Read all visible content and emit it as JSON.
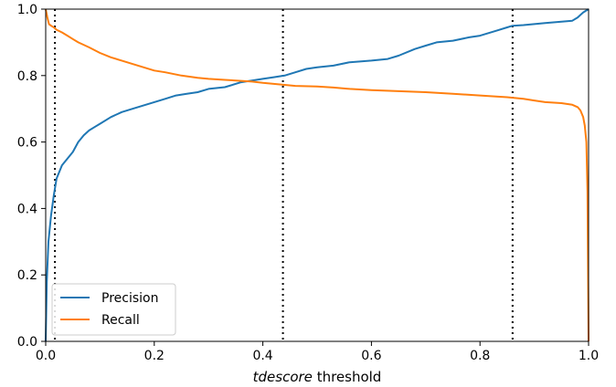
{
  "chart_data": {
    "type": "line",
    "xlabel_italic": "tdescore",
    "xlabel_rest": " threshold",
    "ylabel": "",
    "xlim": [
      0.0,
      1.0
    ],
    "ylim": [
      0.0,
      1.0
    ],
    "xticks": [
      "0.0",
      "0.2",
      "0.4",
      "0.6",
      "0.8",
      "1.0"
    ],
    "yticks": [
      "0.0",
      "0.2",
      "0.4",
      "0.6",
      "0.8",
      "1.0"
    ],
    "grid": false,
    "legend_position": "lower-left",
    "vlines": [
      0.017,
      0.437,
      0.86
    ],
    "series": [
      {
        "name": "Precision",
        "color": "#1f77b4",
        "x": [
          0.0,
          0.002,
          0.005,
          0.01,
          0.015,
          0.02,
          0.03,
          0.04,
          0.05,
          0.06,
          0.07,
          0.08,
          0.09,
          0.1,
          0.12,
          0.14,
          0.16,
          0.18,
          0.2,
          0.22,
          0.24,
          0.26,
          0.28,
          0.3,
          0.33,
          0.36,
          0.38,
          0.4,
          0.42,
          0.44,
          0.46,
          0.48,
          0.5,
          0.53,
          0.56,
          0.6,
          0.63,
          0.65,
          0.68,
          0.7,
          0.72,
          0.75,
          0.78,
          0.8,
          0.83,
          0.85,
          0.86,
          0.88,
          0.9,
          0.92,
          0.95,
          0.97,
          0.98,
          0.99,
          1.0
        ],
        "values": [
          0.0,
          0.18,
          0.3,
          0.38,
          0.44,
          0.49,
          0.53,
          0.55,
          0.57,
          0.6,
          0.62,
          0.635,
          0.645,
          0.655,
          0.675,
          0.69,
          0.7,
          0.71,
          0.72,
          0.73,
          0.74,
          0.745,
          0.75,
          0.76,
          0.765,
          0.78,
          0.785,
          0.79,
          0.795,
          0.8,
          0.81,
          0.82,
          0.825,
          0.83,
          0.84,
          0.845,
          0.85,
          0.86,
          0.88,
          0.89,
          0.9,
          0.905,
          0.915,
          0.92,
          0.935,
          0.945,
          0.95,
          0.952,
          0.955,
          0.958,
          0.962,
          0.965,
          0.975,
          0.99,
          1.0
        ]
      },
      {
        "name": "Recall",
        "color": "#ff7f0e",
        "x": [
          0.0,
          0.003,
          0.006,
          0.01,
          0.015,
          0.02,
          0.03,
          0.04,
          0.05,
          0.06,
          0.08,
          0.1,
          0.12,
          0.14,
          0.16,
          0.18,
          0.2,
          0.22,
          0.25,
          0.28,
          0.3,
          0.33,
          0.36,
          0.38,
          0.4,
          0.42,
          0.44,
          0.46,
          0.5,
          0.53,
          0.56,
          0.6,
          0.65,
          0.7,
          0.75,
          0.8,
          0.85,
          0.88,
          0.9,
          0.92,
          0.95,
          0.97,
          0.98,
          0.985,
          0.99,
          0.993,
          0.996,
          0.998,
          1.0
        ],
        "values": [
          1.0,
          0.975,
          0.955,
          0.95,
          0.945,
          0.938,
          0.93,
          0.92,
          0.91,
          0.9,
          0.885,
          0.868,
          0.855,
          0.845,
          0.835,
          0.825,
          0.815,
          0.81,
          0.8,
          0.793,
          0.79,
          0.787,
          0.784,
          0.782,
          0.778,
          0.775,
          0.772,
          0.769,
          0.767,
          0.764,
          0.76,
          0.756,
          0.753,
          0.75,
          0.745,
          0.74,
          0.735,
          0.73,
          0.725,
          0.72,
          0.717,
          0.712,
          0.705,
          0.695,
          0.675,
          0.65,
          0.6,
          0.45,
          0.0
        ]
      }
    ]
  }
}
